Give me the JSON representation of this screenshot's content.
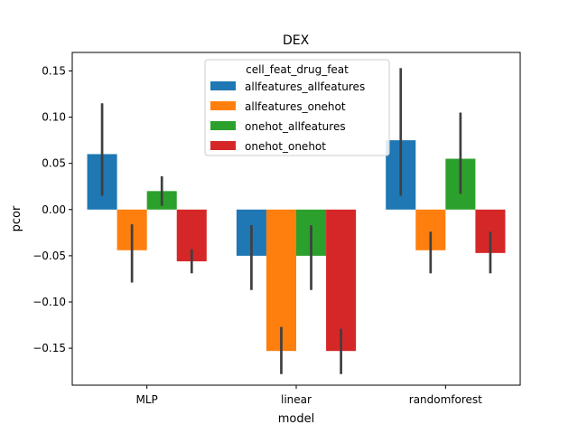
{
  "chart_data": {
    "type": "bar",
    "title": "DEX",
    "xlabel": "model",
    "ylabel": "pcor",
    "ylim": [
      -0.19,
      0.17
    ],
    "yticks": [
      -0.15,
      -0.1,
      -0.05,
      0.0,
      0.05,
      0.1,
      0.15
    ],
    "ytick_labels": [
      "−0.15",
      "−0.10",
      "−0.05",
      "0.00",
      "0.05",
      "0.10",
      "0.15"
    ],
    "categories": [
      "MLP",
      "linear",
      "randomforest"
    ],
    "legend": {
      "title": "cell_feat_drug_feat",
      "placement": "top-center"
    },
    "series": [
      {
        "name": "allfeatures_allfeatures",
        "color": "#1f77b4",
        "values": [
          0.06,
          -0.05,
          0.075
        ],
        "ci_low": [
          0.015,
          -0.087,
          0.015
        ],
        "ci_high": [
          0.115,
          -0.017,
          0.153
        ]
      },
      {
        "name": "allfeatures_onehot",
        "color": "#ff7f0e",
        "values": [
          -0.044,
          -0.153,
          -0.044
        ],
        "ci_low": [
          -0.079,
          -0.178,
          -0.069
        ],
        "ci_high": [
          -0.016,
          -0.127,
          -0.024
        ]
      },
      {
        "name": "onehot_allfeatures",
        "color": "#2ca02c",
        "values": [
          0.02,
          -0.05,
          0.055
        ],
        "ci_low": [
          0.004,
          -0.087,
          0.017
        ],
        "ci_high": [
          0.036,
          -0.017,
          0.105
        ]
      },
      {
        "name": "onehot_onehot",
        "color": "#d62728",
        "values": [
          -0.056,
          -0.153,
          -0.047
        ],
        "ci_low": [
          -0.069,
          -0.178,
          -0.069
        ],
        "ci_high": [
          -0.043,
          -0.129,
          -0.024
        ]
      }
    ]
  }
}
